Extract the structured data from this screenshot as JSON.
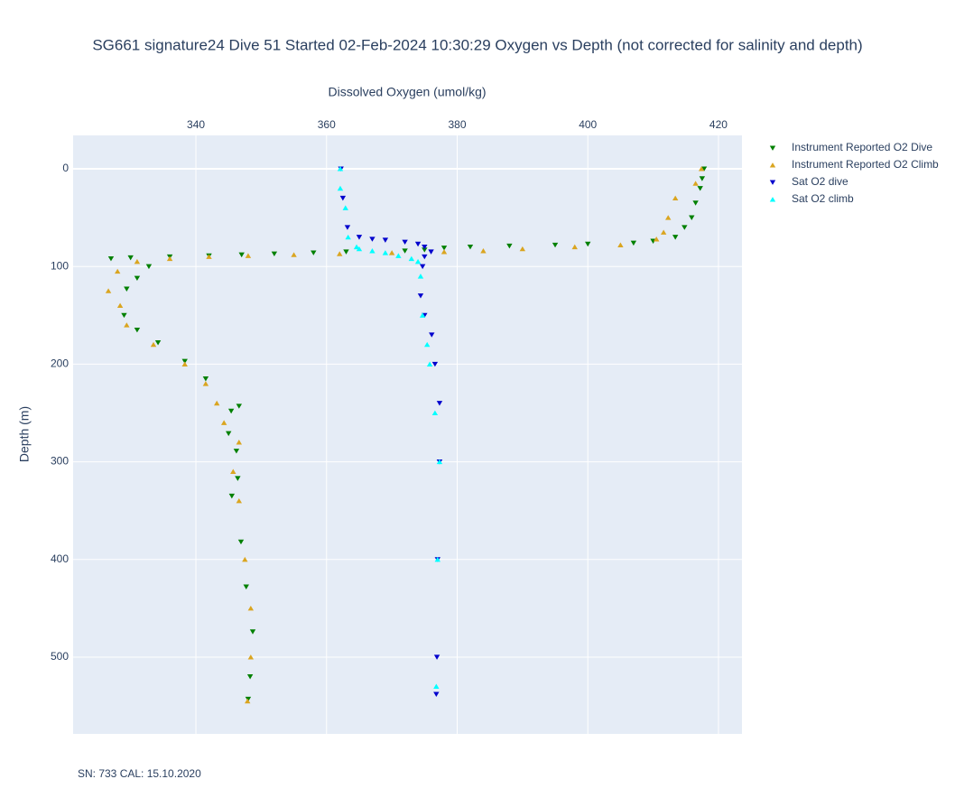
{
  "chart_data": {
    "type": "scatter",
    "title": "SG661 signature24 Dive 51 Started 02-Feb-2024 10:30:29  Oxygen vs Depth (not corrected for salinity and depth)",
    "xlabel": "Dissolved Oxygen (umol/kg)",
    "ylabel": "Depth (m)",
    "annotation": "SN: 733  CAL: 15.10.2020",
    "xlim": [
      321.2,
      423.6
    ],
    "xticks": [
      340,
      360,
      380,
      400,
      420
    ],
    "xaxis_side": "top",
    "ylim": [
      -34.2,
      578.6
    ],
    "yticks": [
      0,
      100,
      200,
      300,
      400,
      500
    ],
    "yaxis_reversed": true,
    "grid": true,
    "legend_position": "top-right",
    "series": [
      {
        "name": "Instrument Reported O2 Dive",
        "color": "#008000",
        "symbol": "triangle-down",
        "x": [
          417.8,
          417.5,
          417.2,
          416.5,
          415.9,
          414.8,
          413.4,
          410,
          407,
          400,
          395,
          388,
          382,
          378,
          375,
          372,
          363,
          358,
          352,
          347,
          342,
          336,
          330,
          327,
          332.8,
          331,
          329.4,
          329,
          331,
          334.2,
          338.3,
          341.5,
          346.6,
          345.4,
          345,
          346.2,
          346.4,
          345.5,
          346.9,
          347.7,
          348.7,
          348.3,
          348
        ],
        "y": [
          0,
          10,
          20,
          35,
          50,
          60,
          70,
          74,
          76,
          77,
          78,
          79,
          80,
          81,
          83,
          84,
          85,
          86,
          87,
          88,
          89,
          90,
          91,
          92,
          100,
          112,
          123,
          150,
          165,
          178,
          197,
          215,
          243,
          248,
          271,
          289,
          317,
          335,
          382,
          428,
          474,
          520,
          543
        ]
      },
      {
        "name": "Instrument Reported O2 Climb",
        "color": "#daa520",
        "symbol": "triangle-up",
        "x": [
          417.4,
          416.5,
          413.4,
          412.3,
          411.6,
          410.5,
          405,
          398,
          390,
          384,
          378,
          370,
          362,
          355,
          348,
          342,
          336,
          331,
          328,
          326.6,
          328.4,
          329.4,
          333.5,
          338.3,
          341.5,
          343.2,
          344.3,
          346.6,
          345.7,
          346.6,
          347.5,
          348.4,
          348.4,
          347.9
        ],
        "y": [
          0,
          15,
          30,
          50,
          65,
          72,
          78,
          80,
          82,
          84,
          85,
          86,
          87,
          88,
          89,
          90,
          92,
          95,
          105,
          125,
          140,
          160,
          180,
          200,
          220,
          240,
          260,
          280,
          310,
          340,
          400,
          450,
          500,
          545
        ]
      },
      {
        "name": "Sat O2 dive",
        "color": "#0000cd",
        "symbol": "triangle-down",
        "x": [
          362.2,
          362.5,
          363.2,
          365,
          367,
          369,
          372,
          374,
          375,
          376,
          375,
          374.7,
          374.4,
          375,
          376.1,
          376.6,
          377.3,
          377.3,
          377,
          376.9,
          376.8
        ],
        "y": [
          0,
          30,
          60,
          70,
          72,
          73,
          75,
          77,
          80,
          85,
          90,
          100,
          130,
          150,
          170,
          200,
          240,
          300,
          400,
          500,
          538
        ]
      },
      {
        "name": "Sat O2 climb",
        "color": "#00ffff",
        "symbol": "triangle-up",
        "x": [
          362.1,
          362.1,
          362.9,
          363.3,
          364.6,
          365,
          367,
          369,
          371,
          373,
          374,
          374.4,
          374.7,
          375.4,
          375.8,
          376.6,
          377.3,
          377,
          376.8
        ],
        "y": [
          0,
          20,
          40,
          70,
          80,
          82,
          84,
          86,
          89,
          92,
          95,
          110,
          150,
          180,
          200,
          250,
          300,
          400,
          530
        ]
      }
    ]
  }
}
